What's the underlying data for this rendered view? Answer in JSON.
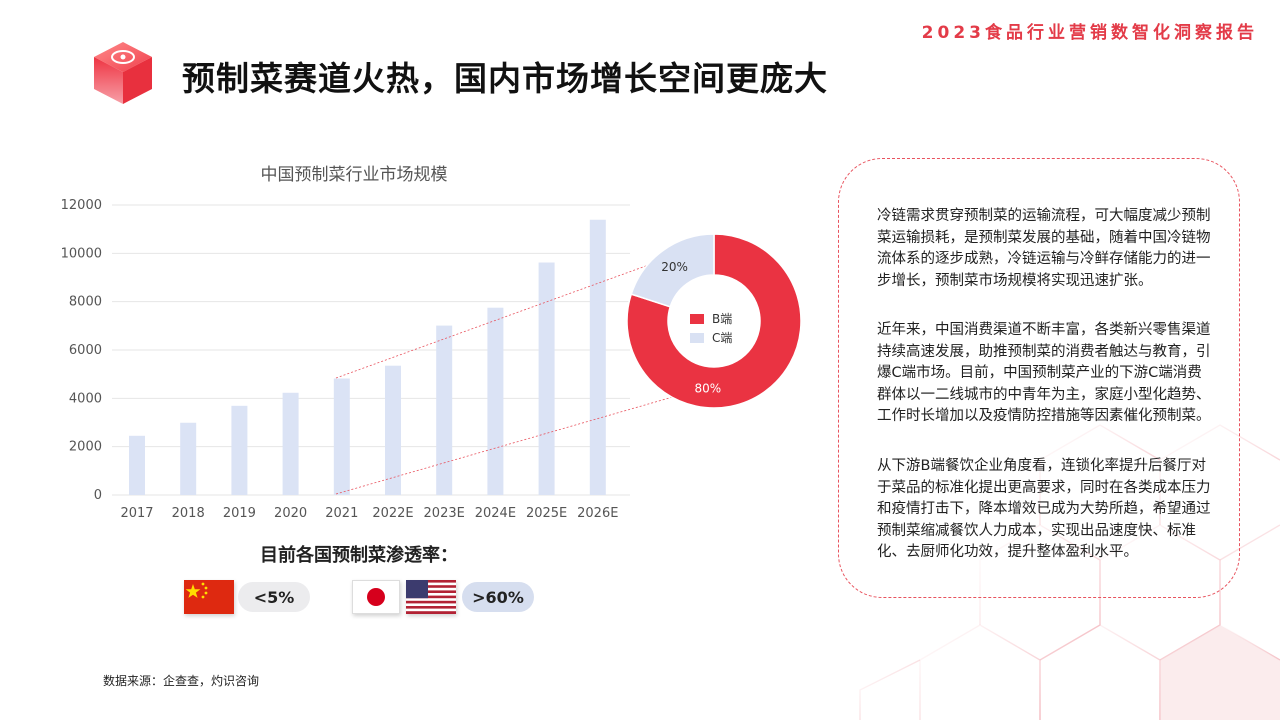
{
  "header": {
    "report_title": "2023食品行业营销数智化洞察报告",
    "main_title": "预制菜赛道火热，国内市场增长空间更庞大"
  },
  "chart_data": [
    {
      "type": "bar",
      "title": "中国预制菜行业市场规模",
      "categories": [
        "2017",
        "2018",
        "2019",
        "2020",
        "2021",
        "2022E",
        "2023E",
        "2024E",
        "2025E",
        "2026E"
      ],
      "values": [
        2450,
        2990,
        3690,
        4230,
        4820,
        5350,
        7010,
        7750,
        9620,
        11390
      ],
      "ylim": [
        0,
        12000
      ],
      "yticks": [
        0,
        2000,
        4000,
        6000,
        8000,
        10000,
        12000
      ],
      "grid": true,
      "color": "#dbe3f5"
    },
    {
      "type": "pie",
      "donut": true,
      "series": [
        {
          "name": "B端",
          "value": 80,
          "label": "80%",
          "color": "#ea3342"
        },
        {
          "name": "C端",
          "value": 20,
          "label": "20%",
          "color": "#d9e1f3"
        }
      ],
      "legend": "center"
    }
  ],
  "penetration": {
    "title": "目前各国预制菜渗透率：",
    "china_value": "<5%",
    "japan_us_value": ">60%"
  },
  "text_box": {
    "para1": "冷链需求贯穿预制菜的运输流程，可大幅度减少预制菜运输损耗，是预制菜发展的基础，随着中国冷链物流体系的逐步成熟，冷链运输与冷鲜存储能力的进一步增长，预制菜市场规模将实现迅速扩张。",
    "para2": "近年来，中国消费渠道不断丰富，各类新兴零售渠道持续高速发展，助推预制菜的消费者触达与教育，引爆C端市场。目前，中国预制菜产业的下游C端消费群体以一二线城市的中青年为主，家庭小型化趋势、工作时长增加以及疫情防控措施等因素催化预制菜。",
    "para3": "从下游B端餐饮企业角度看，连锁化率提升后餐厅对于菜品的标准化提出更高要求，同时在各类成本压力和疫情打击下，降本增效已成为大势所趋，希望通过预制菜缩减餐饮人力成本，实现出品速度快、标准化、去厨师化功效，提升整体盈利水平。"
  },
  "source": "数据来源：企查查，灼识咨询"
}
